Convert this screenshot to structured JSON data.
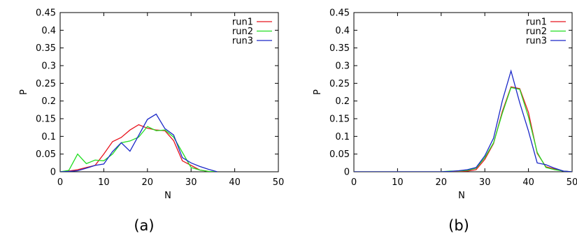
{
  "colors": {
    "run1": "#e8141e",
    "run2": "#22dd22",
    "run3": "#1a28c8"
  },
  "chart_data": [
    {
      "type": "line",
      "caption": "(a)",
      "xlabel": "N",
      "ylabel": "P",
      "xlim": [
        0,
        50
      ],
      "ylim": [
        0,
        0.45
      ],
      "xticks": [
        "0",
        "10",
        "20",
        "30",
        "40",
        "50"
      ],
      "yticks": [
        "0",
        "0.05",
        "0.1",
        "0.15",
        "0.2",
        "0.25",
        "0.3",
        "0.35",
        "0.4",
        "0.45"
      ],
      "legend": "top-right",
      "series": [
        {
          "name": "run1",
          "x": [
            0,
            2,
            4,
            6,
            8,
            10,
            12,
            14,
            16,
            18,
            20,
            22,
            24,
            26,
            28,
            30,
            32,
            34,
            36
          ],
          "values": [
            0,
            0.002,
            0.006,
            0.012,
            0.018,
            0.05,
            0.085,
            0.097,
            0.118,
            0.133,
            0.123,
            0.118,
            0.116,
            0.088,
            0.031,
            0.018,
            0.005,
            0.001,
            0
          ]
        },
        {
          "name": "run2",
          "x": [
            0,
            2,
            4,
            6,
            8,
            10,
            12,
            14,
            16,
            18,
            20,
            22,
            24,
            26,
            28,
            30,
            32,
            34,
            36
          ],
          "values": [
            0,
            0.004,
            0.05,
            0.023,
            0.033,
            0.031,
            0.05,
            0.082,
            0.087,
            0.098,
            0.128,
            0.116,
            0.118,
            0.098,
            0.055,
            0.012,
            0.005,
            0.001,
            0
          ]
        },
        {
          "name": "run3",
          "x": [
            0,
            2,
            4,
            6,
            8,
            10,
            12,
            14,
            16,
            18,
            20,
            22,
            24,
            26,
            28,
            30,
            32,
            34,
            36
          ],
          "values": [
            0,
            0.001,
            0.003,
            0.01,
            0.018,
            0.022,
            0.057,
            0.082,
            0.058,
            0.103,
            0.148,
            0.163,
            0.122,
            0.104,
            0.04,
            0.025,
            0.015,
            0.007,
            0
          ]
        }
      ]
    },
    {
      "type": "line",
      "caption": "(b)",
      "xlabel": "N",
      "ylabel": "P",
      "xlim": [
        0,
        50
      ],
      "ylim": [
        0,
        0.45
      ],
      "xticks": [
        "0",
        "10",
        "20",
        "30",
        "40",
        "50"
      ],
      "yticks": [
        "0",
        "0.05",
        "0.1",
        "0.15",
        "0.2",
        "0.25",
        "0.3",
        "0.35",
        "0.4",
        "0.45"
      ],
      "legend": "top-right",
      "series": [
        {
          "name": "run1",
          "x": [
            0,
            20,
            22,
            24,
            26,
            28,
            30,
            32,
            34,
            36,
            38,
            40,
            42,
            44,
            46,
            48,
            50
          ],
          "values": [
            0,
            0,
            0.001,
            0.001,
            0.002,
            0.006,
            0.035,
            0.08,
            0.17,
            0.24,
            0.235,
            0.168,
            0.052,
            0.014,
            0.008,
            0.002,
            0
          ]
        },
        {
          "name": "run2",
          "x": [
            0,
            20,
            22,
            24,
            26,
            28,
            30,
            32,
            34,
            36,
            38,
            40,
            42,
            44,
            46,
            48,
            50
          ],
          "values": [
            0,
            0,
            0.002,
            0.002,
            0.004,
            0.01,
            0.04,
            0.082,
            0.165,
            0.238,
            0.233,
            0.155,
            0.055,
            0.012,
            0.006,
            0.002,
            0
          ]
        },
        {
          "name": "run3",
          "x": [
            0,
            20,
            22,
            24,
            26,
            28,
            30,
            32,
            34,
            36,
            38,
            40,
            42,
            44,
            46,
            48,
            50
          ],
          "values": [
            0,
            0,
            0.001,
            0.003,
            0.006,
            0.012,
            0.045,
            0.095,
            0.2,
            0.285,
            0.195,
            0.115,
            0.025,
            0.02,
            0.01,
            0.002,
            0
          ]
        }
      ]
    }
  ]
}
